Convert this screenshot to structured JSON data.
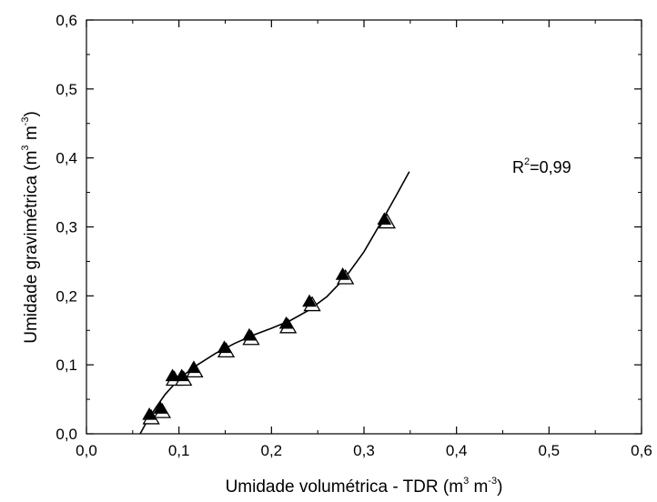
{
  "chart_data": {
    "type": "scatter",
    "xlabel": {
      "main": "Umidade volumétrica - TDR (m",
      "sup1": "3",
      "mid": " m",
      "sup2": "-3",
      "end": ")"
    },
    "ylabel": {
      "main": "Umidade gravimétrica (m",
      "sup1": "3",
      "mid": " m",
      "sup2": "-3",
      "end": ")"
    },
    "xlim": [
      0,
      0.6
    ],
    "ylim": [
      0,
      0.6
    ],
    "xticks": [
      0,
      0.1,
      0.2,
      0.3,
      0.4,
      0.5,
      0.6
    ],
    "yticks": [
      0,
      0.1,
      0.2,
      0.3,
      0.4,
      0.5,
      0.6
    ],
    "xtick_labels": [
      "0,0",
      "0,1",
      "0,2",
      "0,3",
      "0,4",
      "0,5",
      "0,6"
    ],
    "ytick_labels": [
      "0,0",
      "0,1",
      "0,2",
      "0,3",
      "0,4",
      "0,5",
      "0,6"
    ],
    "grid": false,
    "annotation": {
      "prefix": "R",
      "sup": "2",
      "value": "=0,99"
    },
    "series": [
      {
        "marker": "filled-triangle",
        "x": [
          0.068,
          0.08,
          0.093,
          0.103,
          0.116,
          0.149,
          0.176,
          0.216,
          0.241,
          0.277,
          0.322
        ],
        "y": [
          0.027,
          0.036,
          0.083,
          0.083,
          0.095,
          0.124,
          0.142,
          0.159,
          0.191,
          0.23,
          0.31
        ]
      },
      {
        "marker": "open-triangle",
        "x": [
          0.07,
          0.082,
          0.095,
          0.105,
          0.117,
          0.151,
          0.178,
          0.218,
          0.244,
          0.28,
          0.325
        ],
        "y": [
          0.022,
          0.031,
          0.078,
          0.078,
          0.09,
          0.119,
          0.137,
          0.154,
          0.186,
          0.225,
          0.306
        ]
      }
    ],
    "fit_curve": {
      "x": [
        0.058,
        0.065,
        0.075,
        0.085,
        0.095,
        0.105,
        0.12,
        0.14,
        0.16,
        0.18,
        0.2,
        0.22,
        0.24,
        0.26,
        0.28,
        0.3,
        0.32,
        0.335,
        0.349
      ],
      "y": [
        0.0,
        0.017,
        0.038,
        0.057,
        0.072,
        0.085,
        0.1,
        0.117,
        0.131,
        0.143,
        0.153,
        0.164,
        0.179,
        0.199,
        0.227,
        0.264,
        0.31,
        0.346,
        0.38
      ]
    }
  }
}
